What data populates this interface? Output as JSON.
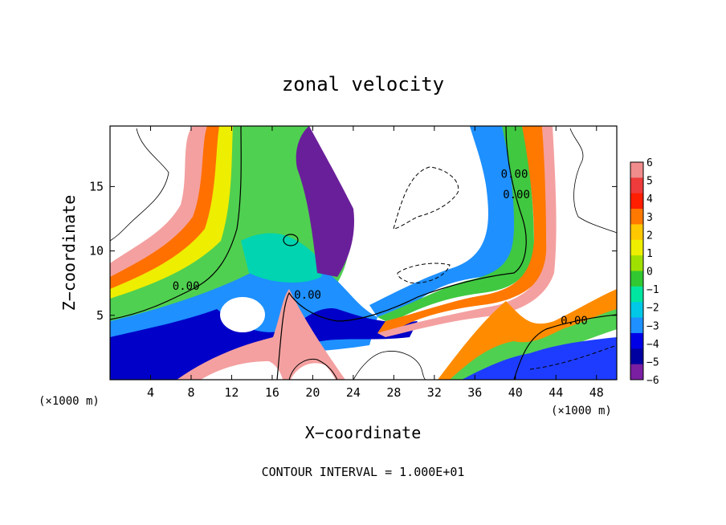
{
  "chart_data": {
    "type": "heatmap",
    "title": "zonal velocity",
    "xlabel": "X−coordinate",
    "ylabel": "Z−coordinate",
    "x_unit_left": "(×1000 m)",
    "x_unit_right": "(×1000 m)",
    "footer": "CONTOUR INTERVAL = 1.000E+01",
    "xlim": [
      0,
      50
    ],
    "ylim": [
      0,
      19.7
    ],
    "x_ticks": [
      4,
      8,
      12,
      16,
      20,
      24,
      28,
      32,
      36,
      40,
      44,
      48
    ],
    "y_ticks": [
      5,
      10,
      15
    ],
    "colorbar": {
      "levels": [
        6,
        5,
        4,
        3,
        2,
        1,
        0,
        -1,
        -2,
        -3,
        -4,
        -5,
        -6
      ],
      "colors": [
        "#f08c8c",
        "#ee3b3b",
        "#ff1e00",
        "#ff7800",
        "#ffc800",
        "#eeee00",
        "#a0e000",
        "#32c832",
        "#00e6a0",
        "#00c8e6",
        "#1e90ff",
        "#0000e6",
        "#0000a0",
        "#7a1fa2"
      ]
    },
    "contour_labels": [
      {
        "text": "0.00",
        "x": 7.5,
        "z": 7.3
      },
      {
        "text": "0.00",
        "x": 19.5,
        "z": 6.6
      },
      {
        "text": "0.00",
        "x": 45.8,
        "z": 4.6
      },
      {
        "text": "0.00",
        "x": 39.9,
        "z": 16.0
      },
      {
        "text": "0.00",
        "x": 40.1,
        "z": 14.4
      }
    ]
  }
}
